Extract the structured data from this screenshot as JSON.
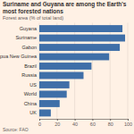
{
  "chart_data": {
    "type": "bar",
    "orientation": "horizontal",
    "title": "Suriname and Guyana are among the Earth's most forested nations",
    "subtitle": "Forest area (% of total land)",
    "source": "Source: FAO",
    "categories": [
      "Guyana",
      "Suriname",
      "Gabon",
      "Papua New Guinea",
      "Brazil",
      "Russia",
      "US",
      "World",
      "China",
      "UK"
    ],
    "values": [
      94,
      97,
      91,
      79,
      59,
      50,
      34,
      31,
      23,
      13
    ],
    "color": "#3f6fa8",
    "xlim": [
      0,
      100
    ],
    "xticks": [
      0,
      20,
      40,
      60,
      80,
      100
    ],
    "grid": true
  }
}
